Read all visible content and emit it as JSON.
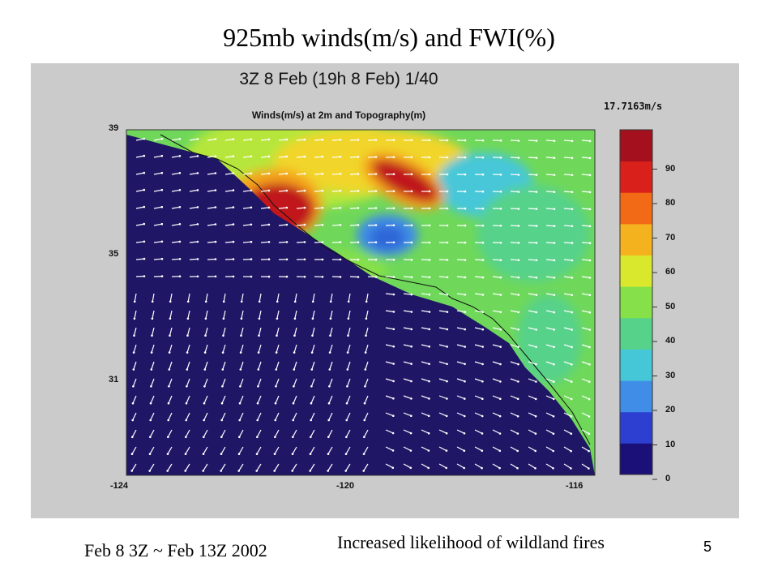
{
  "slide": {
    "title": "925mb winds(m/s) and FWI(%)",
    "footnote_left": "Feb 8 3Z ~ Feb 13Z 2002",
    "footnote_right": "Increased likelihood of wildland fires",
    "page_number": "5"
  },
  "figure": {
    "title": "3Z 8 Feb (19h 8 Feb)    1/40",
    "subtitle": "Winds(m/s) at 2m and Topography(m)",
    "max_wind": "17.7163m/s",
    "y_ticks": [
      "39",
      "35",
      "31"
    ],
    "x_ticks": [
      "-124",
      "-120",
      "-116"
    ],
    "colorbar_ticks": [
      "90",
      "80",
      "70",
      "60",
      "50",
      "40",
      "30",
      "20",
      "10",
      "0"
    ],
    "colorbar_colors": [
      "#1b0f78",
      "#2d3fd0",
      "#3f8de6",
      "#46c7d8",
      "#56d28a",
      "#86e04a",
      "#d9e82d",
      "#f5b21f",
      "#f26a16",
      "#d9201a",
      "#a5101e"
    ],
    "colors": {
      "ocean": "#1f1666",
      "land": "#6fd85a",
      "hot": "#c0151f",
      "warm": "#f4a11b",
      "cool": "#2f66d8",
      "wind_arrow": "#ffffff"
    }
  }
}
